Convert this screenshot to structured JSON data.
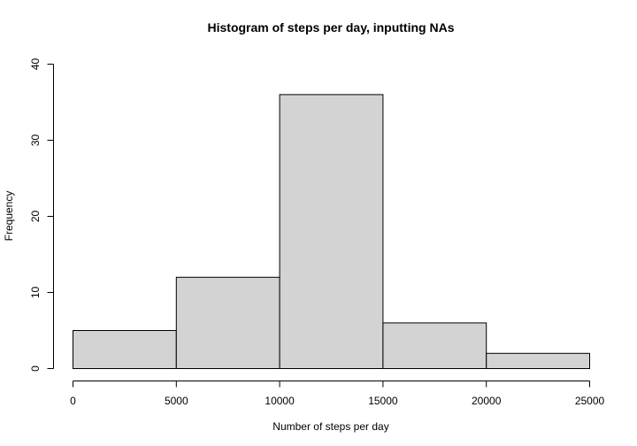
{
  "chart_data": {
    "type": "bar",
    "title": "Histogram of steps per day, inputting NAs",
    "xlabel": "Number of steps per day",
    "ylabel": "Frequency",
    "bins": [
      {
        "from": 0,
        "to": 5000,
        "count": 5
      },
      {
        "from": 5000,
        "to": 10000,
        "count": 12
      },
      {
        "from": 10000,
        "to": 15000,
        "count": 36
      },
      {
        "from": 15000,
        "to": 20000,
        "count": 6
      },
      {
        "from": 20000,
        "to": 25000,
        "count": 2
      }
    ],
    "xlim": [
      0,
      25000
    ],
    "ylim": [
      0,
      40
    ],
    "x_ticks": [
      0,
      5000,
      10000,
      15000,
      20000,
      25000
    ],
    "y_ticks": [
      0,
      10,
      20,
      30,
      40
    ],
    "bar_color": "#d3d3d3",
    "edge_color": "#000000",
    "grid": false,
    "legend": "none"
  }
}
